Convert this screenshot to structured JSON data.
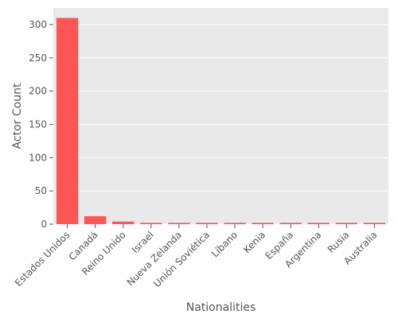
{
  "chart_data": {
    "type": "bar",
    "title": "",
    "xlabel": "Nationalities",
    "ylabel": "Actor Count",
    "categories": [
      "Estados Unidos",
      "Canadá",
      "Reino Unido",
      "Israel",
      "Nueva Zelanda",
      "Unión Soviética",
      "Líbano",
      "Kenia",
      "España",
      "Argentina",
      "Rusia",
      "Australia"
    ],
    "values": [
      310,
      12,
      4,
      2,
      2,
      2,
      2,
      2,
      2,
      2,
      2,
      2
    ],
    "yticks": [
      0,
      50,
      100,
      150,
      200,
      250,
      300
    ],
    "ylim": [
      0,
      325
    ],
    "grid": true,
    "legend": "none",
    "colors": {
      "bar": "#ff5555",
      "plot_background": "#e9e9e9",
      "grid": "#ffffff",
      "text": "#555555"
    }
  }
}
